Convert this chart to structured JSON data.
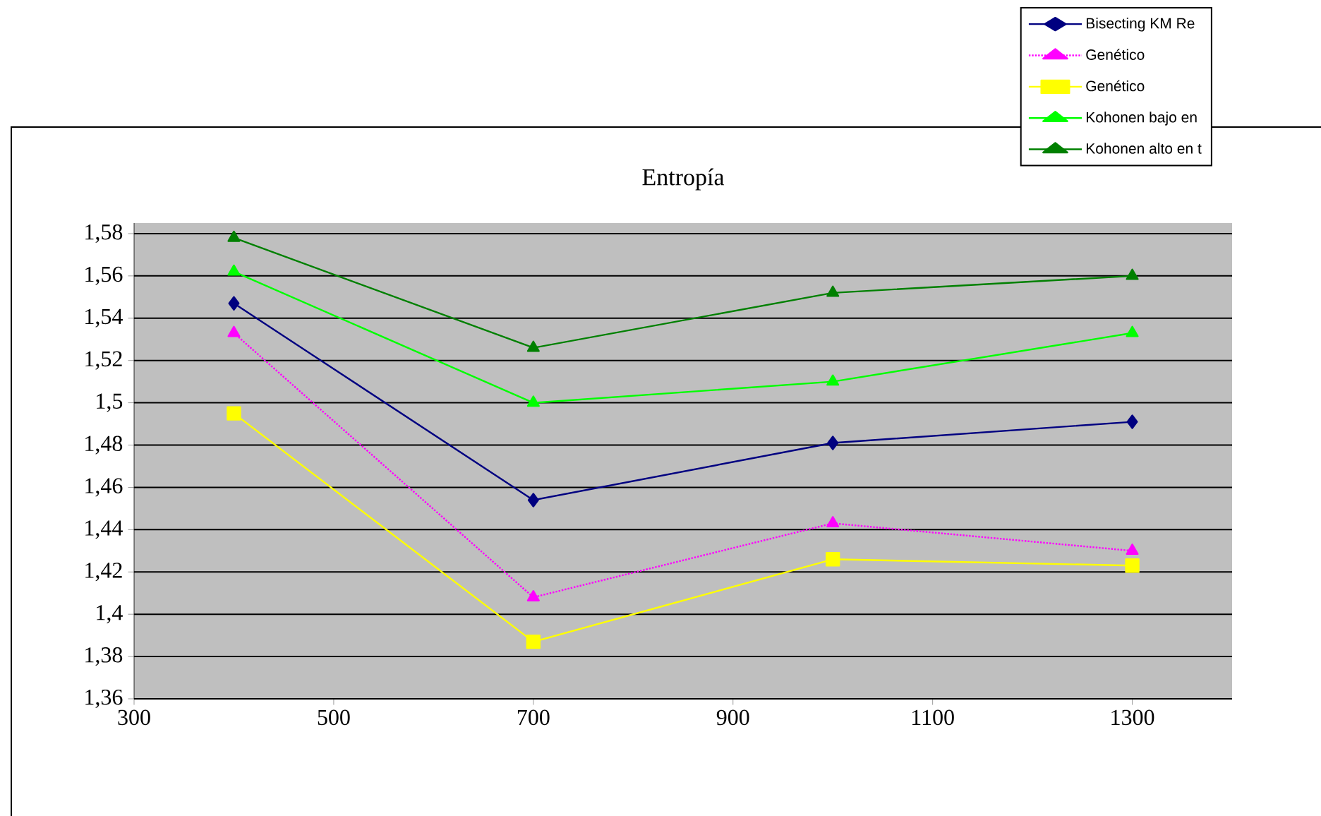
{
  "chart_data": {
    "type": "line",
    "title": "Entropía",
    "x": [
      400,
      700,
      1000,
      1300
    ],
    "series": [
      {
        "name": "Bisecting KM Re",
        "color": "#000080",
        "marker": "diamond",
        "line_style": "solid",
        "values": [
          1.547,
          1.454,
          1.481,
          1.491
        ]
      },
      {
        "name": "Genético",
        "color": "#ff00ff",
        "marker": "triangle",
        "line_style": "dotted",
        "values": [
          1.533,
          1.408,
          1.443,
          1.43
        ]
      },
      {
        "name": "Genético",
        "color": "#ffff00",
        "marker": "square",
        "line_style": "solid",
        "values": [
          1.495,
          1.387,
          1.426,
          1.423
        ]
      },
      {
        "name": "Kohonen bajo en",
        "color": "#00ff00",
        "marker": "triangle",
        "line_style": "solid",
        "values": [
          1.562,
          1.5,
          1.51,
          1.533
        ]
      },
      {
        "name": "Kohonen alto en t",
        "color": "#008000",
        "marker": "triangle",
        "line_style": "solid",
        "values": [
          1.578,
          1.526,
          1.552,
          1.56
        ]
      }
    ],
    "xlim": [
      300,
      1400
    ],
    "xticks": [
      300,
      500,
      700,
      900,
      1100,
      1300
    ],
    "ylim": [
      1.36,
      1.585
    ],
    "yticks": [
      {
        "value": 1.36,
        "label": "1,36"
      },
      {
        "value": 1.38,
        "label": "1,38"
      },
      {
        "value": 1.4,
        "label": "1,4"
      },
      {
        "value": 1.42,
        "label": "1,42"
      },
      {
        "value": 1.44,
        "label": "1,44"
      },
      {
        "value": 1.46,
        "label": "1,46"
      },
      {
        "value": 1.48,
        "label": "1,48"
      },
      {
        "value": 1.5,
        "label": "1,5"
      },
      {
        "value": 1.52,
        "label": "1,52"
      },
      {
        "value": 1.54,
        "label": "1,54"
      },
      {
        "value": 1.56,
        "label": "1,56"
      },
      {
        "value": 1.58,
        "label": "1,58"
      }
    ],
    "grid": "y",
    "legend": "top right"
  }
}
